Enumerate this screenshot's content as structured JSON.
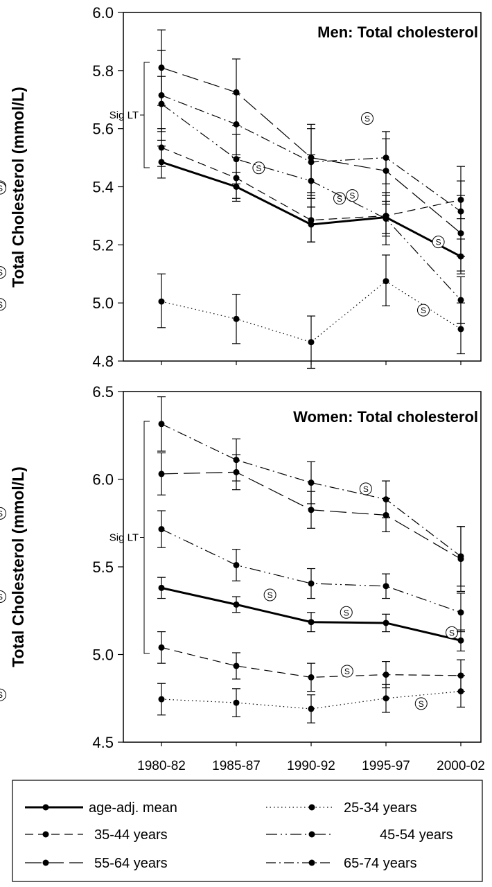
{
  "chart_data": [
    {
      "type": "line",
      "title": "Men: Total cholesterol",
      "ylabel": "Total Cholesterol (mmol/L)",
      "xlabel": "",
      "categories": [
        "1980-82",
        "1985-87",
        "1990-92",
        "1995-97",
        "2000-02"
      ],
      "ylim": [
        4.8,
        6.0
      ],
      "yticks": [
        "4.8",
        "5.0",
        "5.2",
        "5.4",
        "5.6",
        "5.8",
        "6.0"
      ],
      "grid": false,
      "annotation": "Sig LT",
      "significance_marker": "S",
      "series": [
        {
          "name": "age-adj. mean",
          "values": [
            5.485,
            5.4,
            5.27,
            5.295,
            5.16
          ],
          "err_low": [
            5.43,
            5.35,
            5.21,
            5.24,
            5.1
          ],
          "err_high": [
            5.54,
            5.45,
            5.33,
            5.35,
            5.22
          ],
          "sig": [
            [
              1.3,
              5.465
            ],
            [
              2.38,
              5.36
            ],
            [
              3.7,
              5.21
            ]
          ]
        },
        {
          "name": "25-34 years",
          "values": [
            5.005,
            4.945,
            4.865,
            5.075,
            4.91
          ],
          "err_low": [
            4.915,
            4.86,
            4.775,
            4.99,
            4.825
          ],
          "err_high": [
            5.1,
            5.03,
            4.955,
            5.165,
            5.0
          ],
          "sig": [
            [
              3.5,
              4.975
            ],
            [
              4.52,
              4.995
            ]
          ]
        },
        {
          "name": "35-44 years",
          "values": [
            5.535,
            5.43,
            5.285,
            5.3,
            5.355
          ],
          "err_low": [
            5.47,
            5.36,
            5.21,
            5.23,
            5.29
          ],
          "err_high": [
            5.6,
            5.5,
            5.36,
            5.37,
            5.42
          ],
          "sig": [
            [
              2.55,
              5.37
            ]
          ]
        },
        {
          "name": "45-54 years",
          "values": [
            5.685,
            5.495,
            5.42,
            5.29,
            5.01
          ],
          "err_low": [
            5.59,
            5.41,
            5.33,
            5.2,
            4.93
          ],
          "err_high": [
            5.78,
            5.58,
            5.51,
            5.38,
            5.09
          ],
          "sig": [
            [
              4.45,
              5.105
            ]
          ]
        },
        {
          "name": "55-64 years",
          "values": [
            5.81,
            5.725,
            5.5,
            5.455,
            5.24
          ],
          "err_low": [
            5.68,
            5.61,
            5.38,
            5.34,
            5.11
          ],
          "err_high": [
            5.94,
            5.84,
            5.615,
            5.565,
            5.37
          ],
          "sig": [
            [
              2.75,
              5.635
            ],
            [
              4.12,
              5.4
            ]
          ]
        },
        {
          "name": "65-74 years",
          "values": [
            5.715,
            5.615,
            5.485,
            5.5,
            5.315
          ],
          "err_low": [
            5.56,
            5.51,
            5.37,
            5.41,
            5.16
          ],
          "err_high": [
            5.87,
            5.72,
            5.6,
            5.59,
            5.47
          ],
          "sig": [
            [
              4.45,
              5.395
            ]
          ]
        }
      ]
    },
    {
      "type": "line",
      "title": "Women: Total cholesterol",
      "ylabel": "Total Cholesterol (mmol/L)",
      "xlabel": "",
      "categories": [
        "1980-82",
        "1985-87",
        "1990-92",
        "1995-97",
        "2000-02"
      ],
      "ylim": [
        4.5,
        6.5
      ],
      "yticks": [
        "4.5",
        "5.0",
        "5.5",
        "6.0",
        "6.5"
      ],
      "grid": false,
      "annotation": "Sig LT",
      "significance_marker": "S",
      "series": [
        {
          "name": "age-adj. mean",
          "values": [
            5.38,
            5.285,
            5.185,
            5.18,
            5.08
          ],
          "err_low": [
            5.32,
            5.24,
            5.13,
            5.13,
            5.02
          ],
          "err_high": [
            5.44,
            5.33,
            5.24,
            5.23,
            5.14
          ],
          "sig": [
            [
              1.45,
              5.34
            ],
            [
              2.47,
              5.24
            ],
            [
              3.88,
              5.125
            ]
          ]
        },
        {
          "name": "25-34 years",
          "values": [
            4.745,
            4.725,
            4.69,
            4.75,
            4.79
          ],
          "err_low": [
            4.655,
            4.645,
            4.61,
            4.67,
            4.7
          ],
          "err_high": [
            4.835,
            4.805,
            4.77,
            4.83,
            4.88
          ],
          "sig": [
            [
              3.47,
              4.72
            ],
            [
              4.57,
              4.77
            ]
          ]
        },
        {
          "name": "35-44 years",
          "values": [
            5.04,
            4.935,
            4.87,
            4.885,
            4.88
          ],
          "err_low": [
            4.95,
            4.86,
            4.79,
            4.81,
            4.79
          ],
          "err_high": [
            5.13,
            5.01,
            4.95,
            4.96,
            4.97
          ],
          "sig": [
            [
              2.48,
              4.905
            ]
          ]
        },
        {
          "name": "45-54 years",
          "values": [
            5.715,
            5.51,
            5.405,
            5.39,
            5.24
          ],
          "err_low": [
            5.61,
            5.42,
            5.32,
            5.32,
            5.13
          ],
          "err_high": [
            5.82,
            5.6,
            5.49,
            5.46,
            5.35
          ],
          "sig": [
            [
              4.45,
              5.33
            ]
          ]
        },
        {
          "name": "55-64 years",
          "values": [
            6.03,
            6.04,
            5.825,
            5.795,
            5.545
          ],
          "err_low": [
            5.91,
            5.94,
            5.72,
            5.7,
            5.36
          ],
          "err_high": [
            6.15,
            6.14,
            5.93,
            5.89,
            5.73
          ],
          "sig": [
            [
              2.73,
              5.945
            ]
          ]
        },
        {
          "name": "65-74 years",
          "values": [
            6.315,
            6.11,
            5.98,
            5.885,
            5.56
          ],
          "err_low": [
            6.16,
            5.99,
            5.86,
            5.78,
            5.39
          ],
          "err_high": [
            6.47,
            6.23,
            6.1,
            5.99,
            5.73
          ],
          "sig": [
            [
              4.22,
              5.805
            ]
          ]
        }
      ]
    }
  ],
  "legend": {
    "placement": "bottom",
    "items": [
      {
        "label": "age-adj. mean",
        "dash": "none",
        "width": "bold"
      },
      {
        "label": "25-34 years",
        "dash": "dotted",
        "width": "thin"
      },
      {
        "label": "35-44 years",
        "dash": "dashed",
        "width": "thin"
      },
      {
        "label": "45-54 years",
        "dash": "dash-dot-dot",
        "width": "thin"
      },
      {
        "label": "55-64 years",
        "dash": "long-dash",
        "width": "thin"
      },
      {
        "label": "65-74 years",
        "dash": "dash-dot",
        "width": "thin"
      }
    ]
  }
}
